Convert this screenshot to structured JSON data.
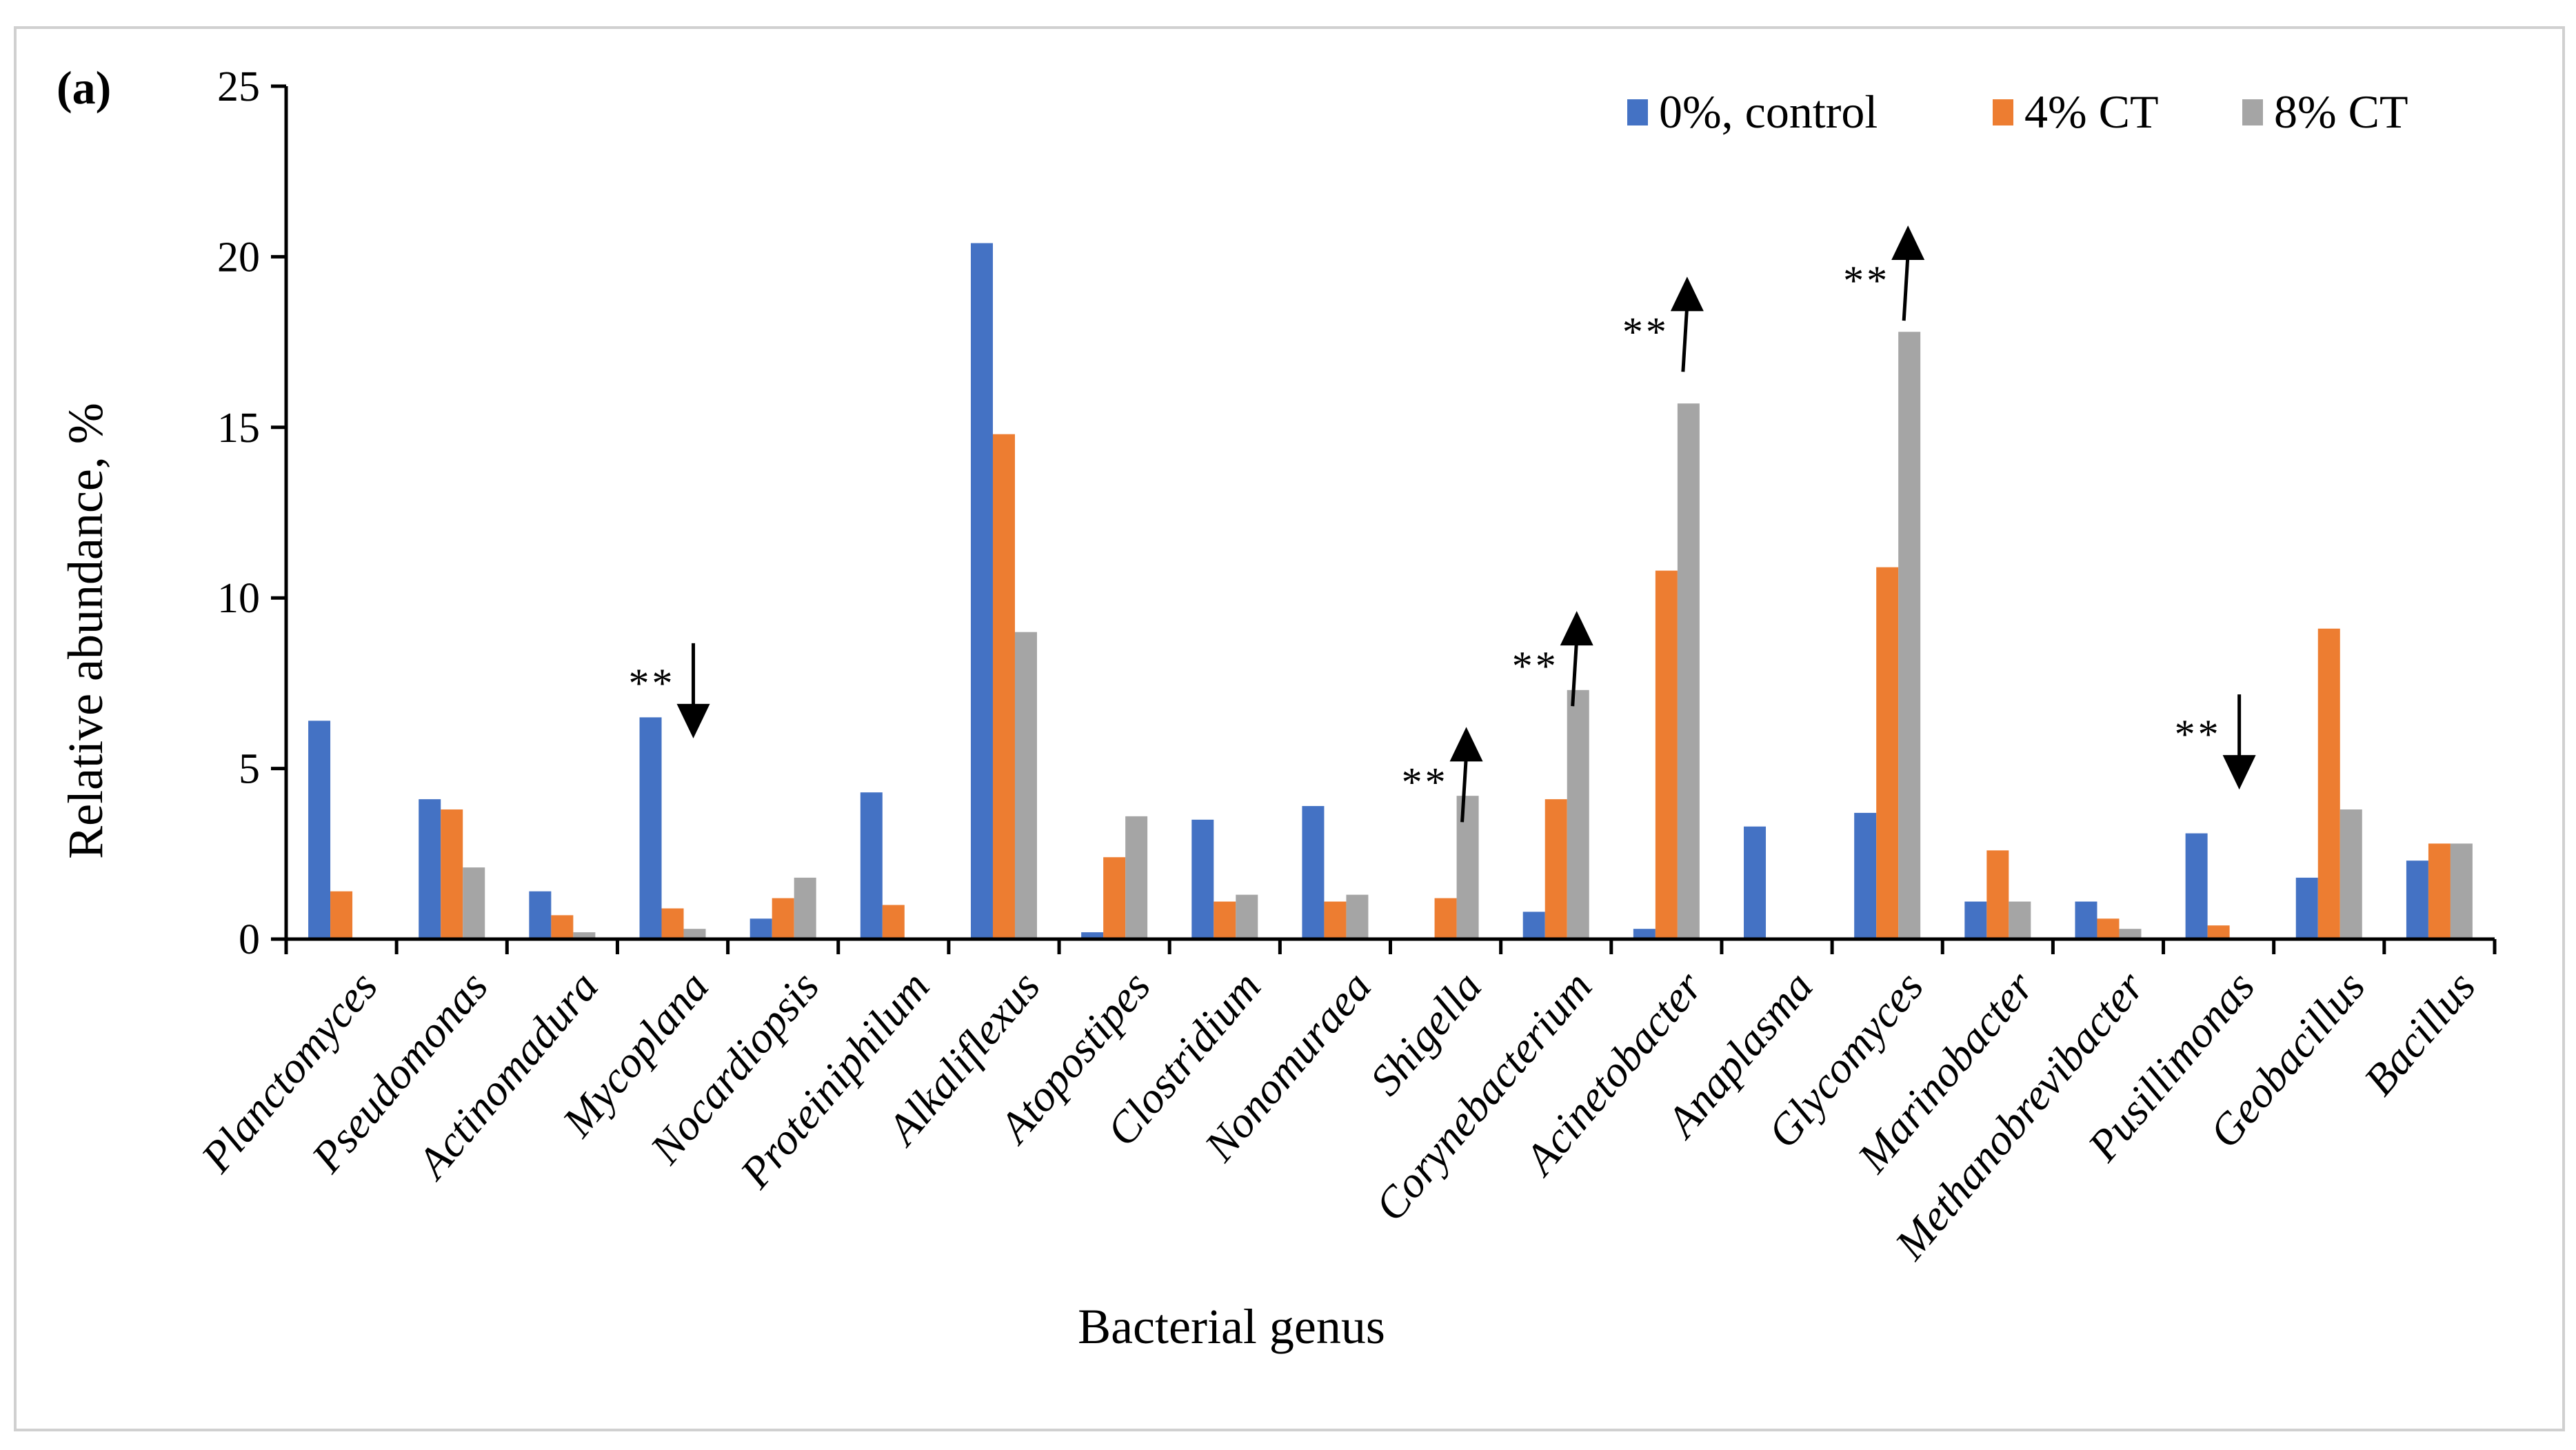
{
  "chart_data": {
    "type": "bar",
    "panel_label": "(a)",
    "title": "",
    "xlabel": "Bacterial genus",
    "ylabel": "Relative abundance, %",
    "ylim": [
      0,
      25
    ],
    "yticks": [
      0,
      5,
      10,
      15,
      20,
      25
    ],
    "grid": false,
    "legend_position": "top-right",
    "categories": [
      "Planctomyces",
      "Pseudomonas",
      "Actinomadura",
      "Mycoplana",
      "Nocardiopsis",
      "Proteiniphilum",
      "Alkaliflexus",
      "Atopostipes",
      "Clostridium",
      "Nonomuraea",
      "Shigella",
      "Corynebacterium",
      "Acinetobacter",
      "Anaplasma",
      "Glycomyces",
      "Marinobacter",
      "Methanobrevibacter",
      "Pusillimonas",
      "Geobacillus",
      "Bacillus"
    ],
    "series": [
      {
        "name": "0%, control",
        "color": "#4472C4",
        "values": [
          6.4,
          4.1,
          1.4,
          6.5,
          0.6,
          4.3,
          20.4,
          0.2,
          3.5,
          3.9,
          0.0,
          0.8,
          0.3,
          3.3,
          3.7,
          1.1,
          1.1,
          3.1,
          1.8,
          2.3
        ]
      },
      {
        "name": "4% CT",
        "color": "#ED7D31",
        "values": [
          1.4,
          3.8,
          0.7,
          0.9,
          1.2,
          1.0,
          14.8,
          2.4,
          1.1,
          1.1,
          1.2,
          4.1,
          10.8,
          0.05,
          10.9,
          2.6,
          0.6,
          0.4,
          9.1,
          2.8
        ]
      },
      {
        "name": "8% CT",
        "color": "#A5A5A5",
        "values": [
          0.0,
          2.1,
          0.2,
          0.3,
          1.8,
          0.05,
          9.0,
          3.6,
          1.3,
          1.3,
          4.2,
          7.3,
          15.7,
          0.05,
          17.8,
          1.1,
          0.3,
          0.0,
          3.8,
          2.8
        ]
      }
    ],
    "annotations": [
      {
        "category": "Mycoplana",
        "text": "**",
        "direction": "down",
        "y": 7.5
      },
      {
        "category": "Shigella",
        "text": "**",
        "direction": "up",
        "y": 4.6
      },
      {
        "category": "Corynebacterium",
        "text": "**",
        "direction": "up",
        "y": 8.0
      },
      {
        "category": "Acinetobacter",
        "text": "**",
        "direction": "up",
        "y": 17.8
      },
      {
        "category": "Glycomyces",
        "text": "**",
        "direction": "up",
        "y": 19.3
      },
      {
        "category": "Pusillimonas",
        "text": "**",
        "direction": "down",
        "y": 6.0
      }
    ]
  }
}
